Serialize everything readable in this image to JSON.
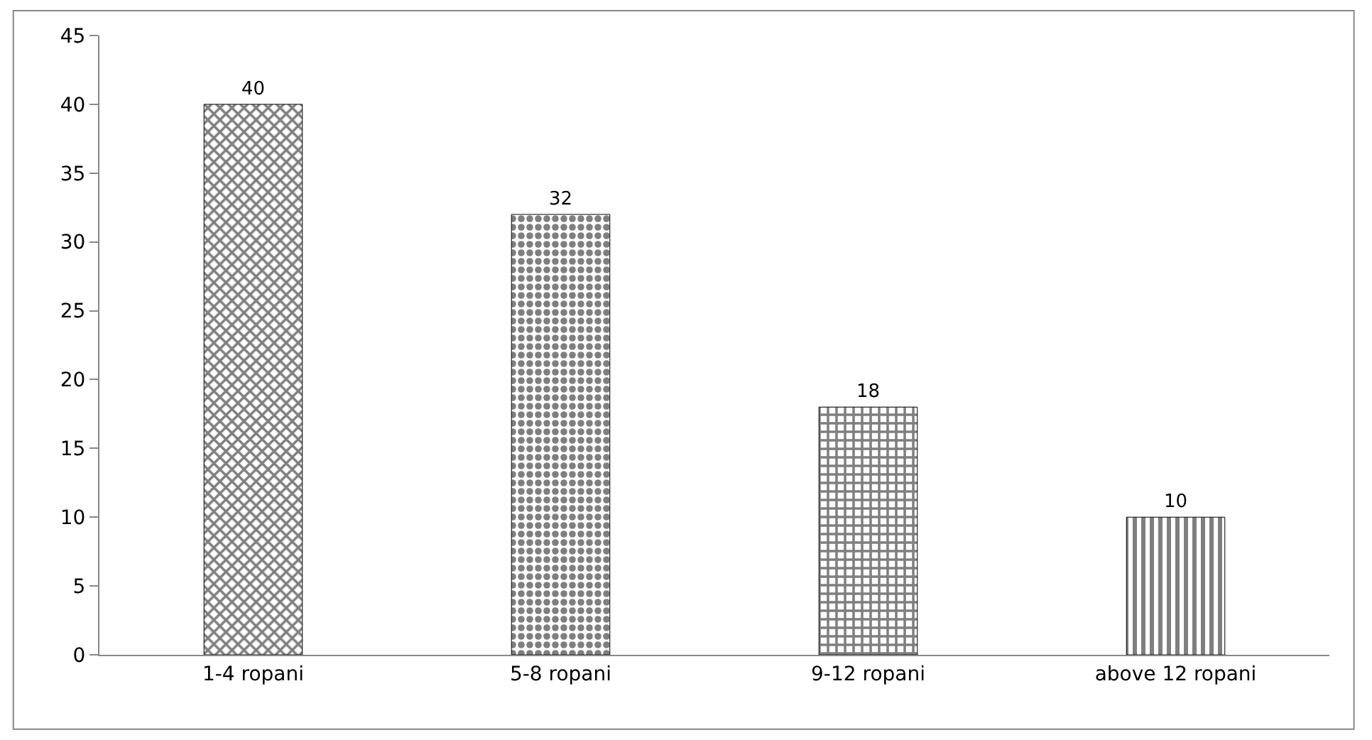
{
  "chart_data": {
    "type": "bar",
    "categories": [
      "1-4 ropani",
      "5-8 ropani",
      "9-12 ropani",
      "above 12 ropani"
    ],
    "values": [
      40,
      32,
      18,
      10
    ],
    "colors": [
      "#000000",
      "#000000",
      "#000000",
      "#000000"
    ],
    "ylim": [
      0,
      45
    ],
    "yticks": [
      0,
      5,
      10,
      15,
      20,
      25,
      30,
      35,
      40,
      45
    ],
    "data_labels": true
  }
}
